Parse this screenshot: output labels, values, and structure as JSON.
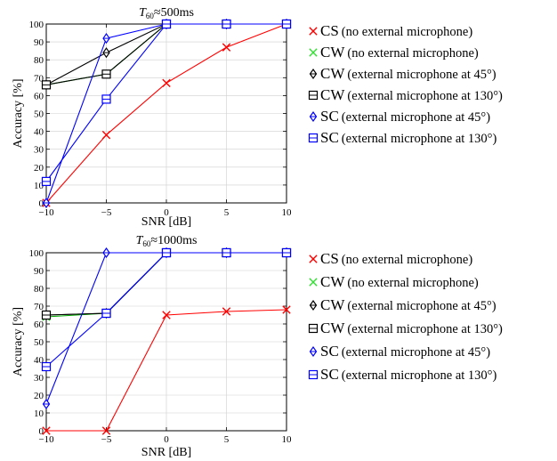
{
  "chart_data": [
    {
      "type": "line",
      "title": "T60 ≈ 500ms",
      "title_parts": {
        "symbol": "T",
        "sub": "60",
        "approx": "≈",
        "value": "500ms"
      },
      "xlabel": "SNR [dB]",
      "ylabel": "Accuracy [%]",
      "x": [
        -10,
        -5,
        0,
        5,
        10
      ],
      "xticks": [
        "−10",
        "−5",
        "0",
        "5",
        "10"
      ],
      "yticks": [
        "0",
        "10",
        "20",
        "30",
        "40",
        "50",
        "60",
        "70",
        "80",
        "90",
        "100"
      ],
      "xlim": [
        -10,
        10
      ],
      "ylim": [
        0,
        100
      ],
      "grid": true,
      "legend_position": "right",
      "series": [
        {
          "key": "CS",
          "name_main": "CS",
          "name_detail": "(no external microphone)",
          "color": "#ff0000",
          "marker": "x",
          "marker_color": "#ff0000",
          "values": [
            0,
            38,
            67,
            87,
            100
          ]
        },
        {
          "key": "CW",
          "name_main": "CW",
          "name_detail": "(no external microphone)",
          "color": "#00aa00",
          "marker": "x",
          "marker_color": "#33dd33",
          "values": [
            66,
            72,
            100,
            100,
            100
          ]
        },
        {
          "key": "CW45",
          "name_main": "CW",
          "name_detail": "(external microphone at 45°)",
          "color": "#000000",
          "marker": "diamond",
          "marker_color": "#000000",
          "values": [
            66,
            84,
            100,
            100,
            100
          ]
        },
        {
          "key": "CW130",
          "name_main": "CW",
          "name_detail": "(external microphone at 130°)",
          "color": "#000000",
          "marker": "square",
          "marker_color": "#000000",
          "values": [
            66,
            72,
            100,
            100,
            100
          ]
        },
        {
          "key": "SC45",
          "name_main": "SC",
          "name_detail": "(external microphone at 45°)",
          "color": "#0000ff",
          "marker": "diamond",
          "marker_color": "#0000ff",
          "values": [
            0,
            92,
            100,
            100,
            100
          ]
        },
        {
          "key": "SC130",
          "name_main": "SC",
          "name_detail": "(external microphone at 130°)",
          "color": "#0000ff",
          "marker": "square",
          "marker_color": "#0000ff",
          "values": [
            12,
            58,
            100,
            100,
            100
          ]
        }
      ]
    },
    {
      "type": "line",
      "title": "T60 ≈ 1000ms",
      "title_parts": {
        "symbol": "T",
        "sub": "60",
        "approx": "≈",
        "value": "1000ms"
      },
      "xlabel": "SNR [dB]",
      "ylabel": "Accuracy [%]",
      "x": [
        -10,
        -5,
        0,
        5,
        10
      ],
      "xticks": [
        "−10",
        "−5",
        "0",
        "5",
        "10"
      ],
      "yticks": [
        "0",
        "10",
        "20",
        "30",
        "40",
        "50",
        "60",
        "70",
        "80",
        "90",
        "100"
      ],
      "xlim": [
        -10,
        10
      ],
      "ylim": [
        0,
        100
      ],
      "grid": true,
      "legend_position": "right",
      "series": [
        {
          "key": "CS",
          "name_main": "CS",
          "name_detail": "(no external microphone)",
          "color": "#ff0000",
          "marker": "x",
          "marker_color": "#ff0000",
          "values": [
            0,
            0,
            65,
            67,
            68
          ]
        },
        {
          "key": "CW",
          "name_main": "CW",
          "name_detail": "(no external microphone)",
          "color": "#00aa00",
          "marker": "x",
          "marker_color": "#33dd33",
          "values": [
            64,
            66,
            100,
            100,
            100
          ]
        },
        {
          "key": "CW45",
          "name_main": "CW",
          "name_detail": "(external microphone at 45°)",
          "color": "#000000",
          "marker": "diamond",
          "marker_color": "#000000",
          "values": [
            65,
            66,
            100,
            100,
            100
          ]
        },
        {
          "key": "CW130",
          "name_main": "CW",
          "name_detail": "(external microphone at 130°)",
          "color": "#000000",
          "marker": "square",
          "marker_color": "#000000",
          "values": [
            65,
            66,
            100,
            100,
            100
          ]
        },
        {
          "key": "SC45",
          "name_main": "SC",
          "name_detail": "(external microphone at 45°)",
          "color": "#0000ff",
          "marker": "diamond",
          "marker_color": "#0000ff",
          "values": [
            15,
            100,
            100,
            100,
            100
          ]
        },
        {
          "key": "SC130",
          "name_main": "SC",
          "name_detail": "(external microphone at 130°)",
          "color": "#0000ff",
          "marker": "square",
          "marker_color": "#0000ff",
          "values": [
            36,
            66,
            100,
            100,
            100
          ]
        }
      ]
    }
  ]
}
